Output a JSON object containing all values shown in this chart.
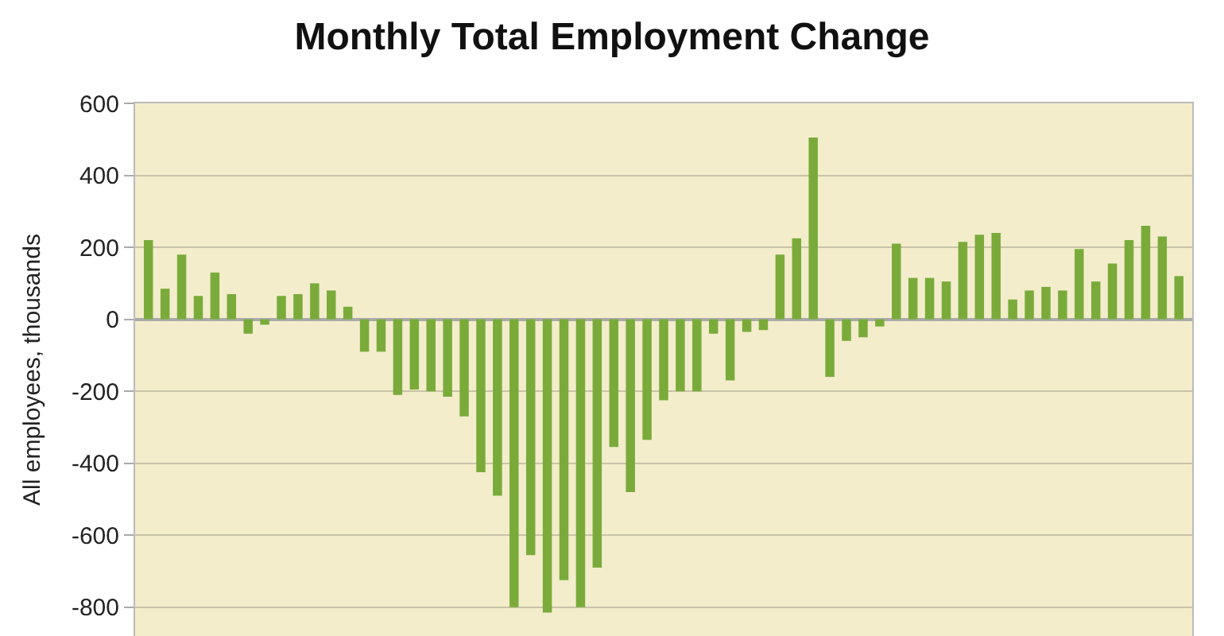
{
  "chart_data": {
    "type": "bar",
    "title": "Monthly Total Employment Change",
    "ylabel": "All employees, thousands",
    "categories": [
      null,
      null,
      null,
      null,
      null,
      null,
      null,
      null,
      null,
      null,
      null,
      null,
      null,
      null,
      null,
      null,
      null,
      null,
      null,
      null,
      null,
      null,
      null,
      null,
      null,
      null,
      null,
      null,
      null,
      null,
      null,
      null,
      null,
      null,
      null,
      null,
      null,
      null,
      null,
      null,
      null,
      null,
      null,
      null,
      null,
      null,
      null,
      null,
      null,
      null,
      null,
      null,
      null,
      null,
      null,
      null,
      null,
      null,
      null,
      null,
      null,
      null,
      null
    ],
    "series": [
      {
        "color": "#7aab3a",
        "values": [
          220,
          85,
          180,
          65,
          130,
          70,
          -40,
          -15,
          65,
          70,
          100,
          80,
          35,
          -90,
          -90,
          -210,
          -195,
          -200,
          -215,
          -270,
          -425,
          -490,
          -800,
          -655,
          -815,
          -725,
          -800,
          -690,
          -355,
          -480,
          -335,
          -225,
          -200,
          -200,
          -40,
          -170,
          -35,
          -30,
          180,
          225,
          505,
          -160,
          -60,
          -50,
          -20,
          210,
          115,
          115,
          105,
          215,
          235,
          240,
          55,
          80,
          90,
          80,
          195,
          105,
          155,
          220,
          260,
          230,
          120
        ]
      }
    ],
    "ylim": [
      -880,
      600
    ],
    "yticks": [
      -800,
      -600,
      -400,
      -200,
      0,
      200,
      400,
      600
    ],
    "grid": "y"
  }
}
